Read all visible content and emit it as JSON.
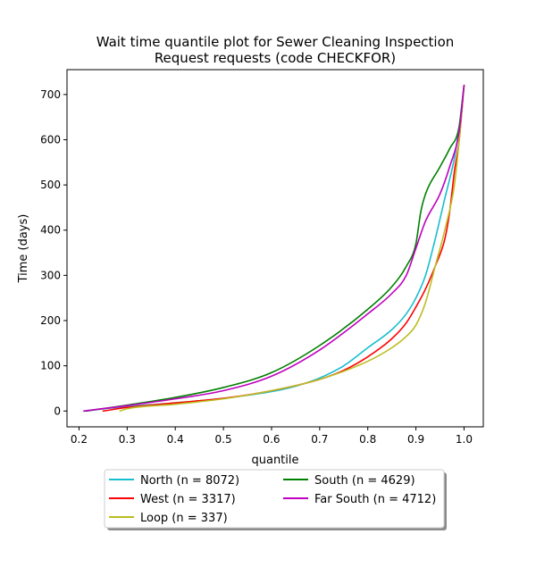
{
  "chart_data": {
    "type": "line",
    "title_lines": [
      "Wait time quantile plot for Sewer Cleaning Inspection",
      "Request  requests (code CHECKFOR)"
    ],
    "xlabel": "quantile",
    "ylabel": "Time (days)",
    "xlim": [
      0.175,
      1.04
    ],
    "ylim": [
      -35,
      755
    ],
    "xticks": [
      0.2,
      0.3,
      0.4,
      0.5,
      0.6,
      0.7,
      0.8,
      0.9,
      1.0
    ],
    "xtick_labels": [
      "0.2",
      "0.3",
      "0.4",
      "0.5",
      "0.6",
      "0.7",
      "0.8",
      "0.9",
      "1.0"
    ],
    "yticks": [
      0,
      100,
      200,
      300,
      400,
      500,
      600,
      700
    ],
    "ytick_labels": [
      "0",
      "100",
      "200",
      "300",
      "400",
      "500",
      "600",
      "700"
    ],
    "grid": false,
    "legend": {
      "placement": "below plot, two columns",
      "shadow": true
    },
    "series": [
      {
        "name": "North (n = 8072)",
        "color": "#17becf",
        "x": [
          0.21,
          0.3,
          0.4,
          0.5,
          0.6,
          0.65,
          0.7,
          0.75,
          0.8,
          0.85,
          0.88,
          0.9,
          0.92,
          0.94,
          0.96,
          0.98,
          0.99,
          1.0
        ],
        "y": [
          0,
          10,
          18,
          28,
          43,
          55,
          73,
          100,
          140,
          180,
          215,
          250,
          300,
          380,
          470,
          560,
          630,
          720
        ]
      },
      {
        "name": "West (n = 3317)",
        "color": "#ff0000",
        "x": [
          0.25,
          0.3,
          0.4,
          0.5,
          0.6,
          0.7,
          0.75,
          0.8,
          0.85,
          0.88,
          0.9,
          0.92,
          0.94,
          0.96,
          0.97,
          0.98,
          0.99,
          1.0
        ],
        "y": [
          0,
          8,
          18,
          28,
          45,
          70,
          90,
          120,
          160,
          195,
          230,
          270,
          320,
          380,
          440,
          530,
          600,
          720
        ]
      },
      {
        "name": "Loop (n = 337)",
        "color": "#bcbd22",
        "x": [
          0.285,
          0.3,
          0.4,
          0.5,
          0.6,
          0.7,
          0.8,
          0.85,
          0.88,
          0.9,
          0.92,
          0.94,
          0.96,
          0.98,
          0.99,
          1.0
        ],
        "y": [
          0,
          5,
          15,
          27,
          45,
          70,
          110,
          140,
          165,
          190,
          240,
          320,
          400,
          500,
          600,
          720
        ]
      },
      {
        "name": "South (n = 4629)",
        "color": "#008000",
        "x": [
          0.215,
          0.3,
          0.4,
          0.5,
          0.6,
          0.7,
          0.8,
          0.85,
          0.88,
          0.9,
          0.91,
          0.92,
          0.95,
          0.97,
          0.99,
          1.0
        ],
        "y": [
          0,
          13,
          30,
          52,
          85,
          145,
          225,
          275,
          320,
          370,
          440,
          480,
          540,
          580,
          630,
          720
        ]
      },
      {
        "name": "Far South (n = 4712)",
        "color": "#bf00bf",
        "x": [
          0.21,
          0.3,
          0.4,
          0.5,
          0.6,
          0.7,
          0.8,
          0.85,
          0.88,
          0.9,
          0.92,
          0.95,
          0.97,
          0.99,
          1.0
        ],
        "y": [
          0,
          12,
          27,
          45,
          77,
          135,
          215,
          260,
          300,
          360,
          420,
          480,
          540,
          620,
          720
        ]
      }
    ]
  }
}
